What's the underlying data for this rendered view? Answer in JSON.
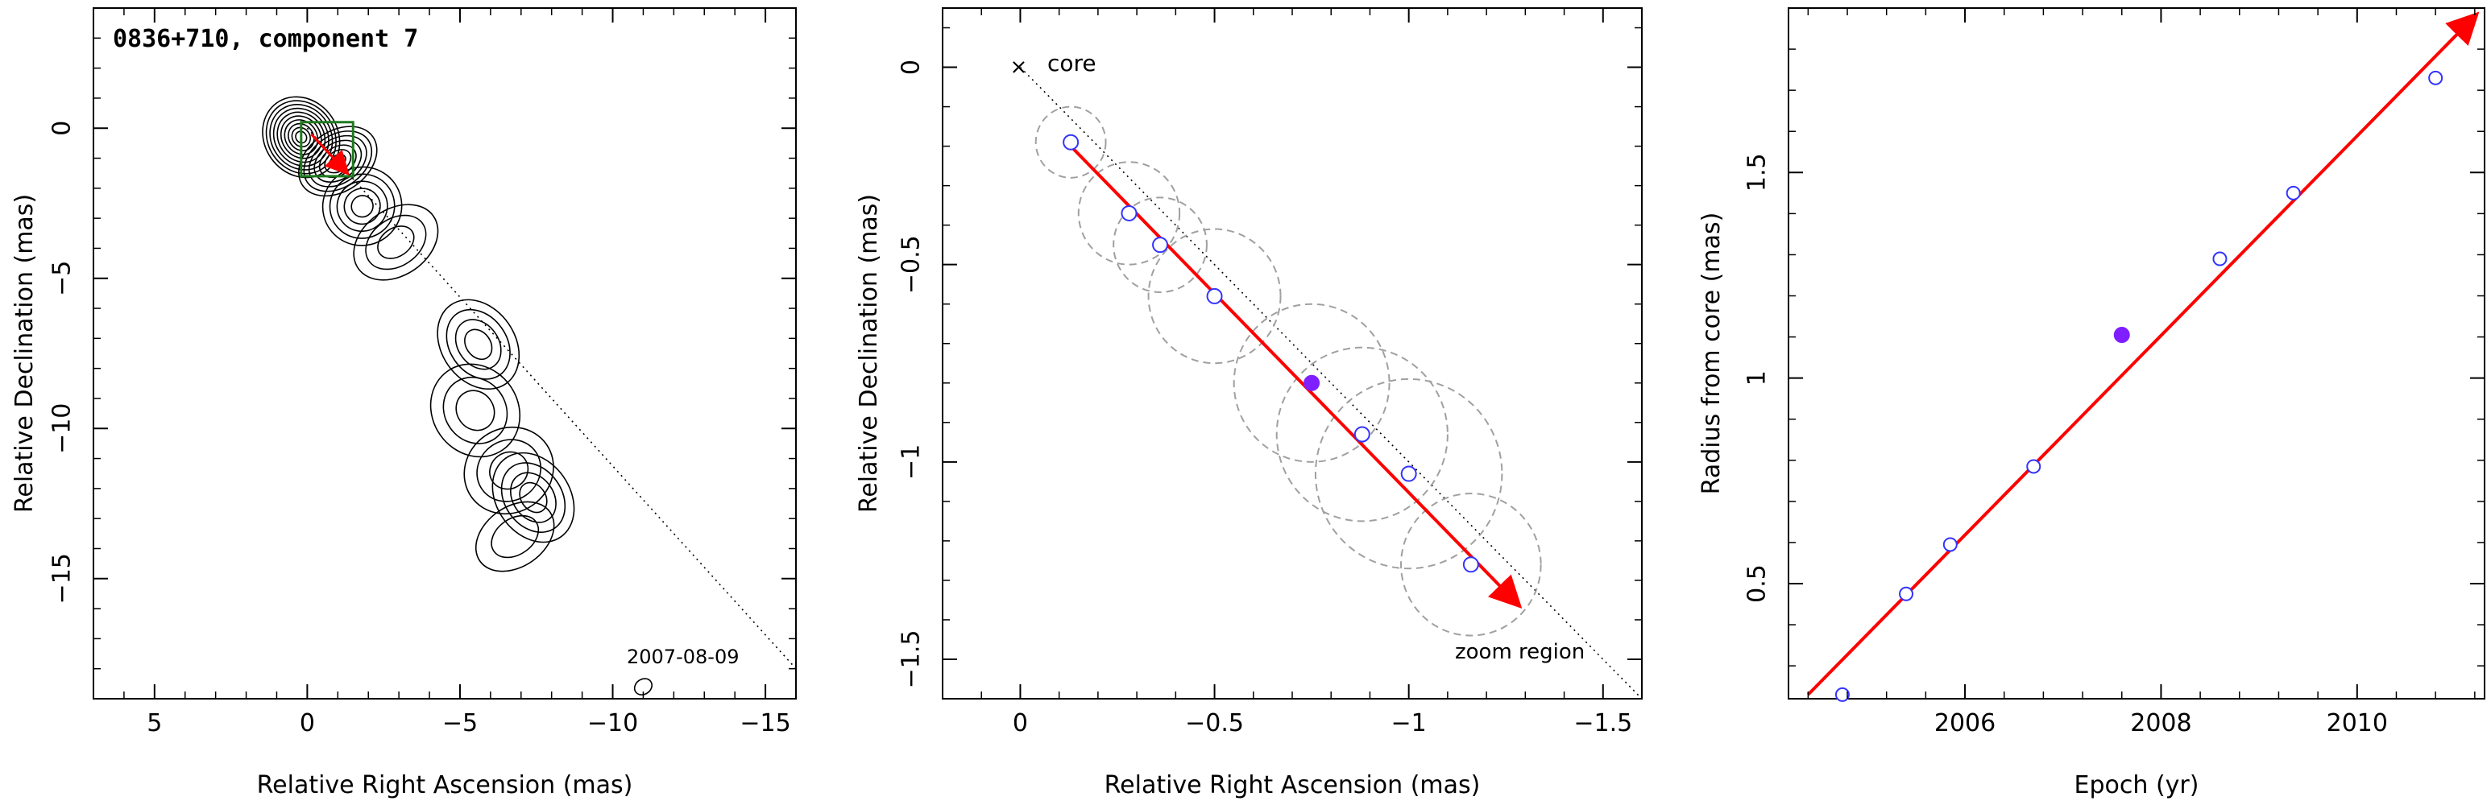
{
  "chart_data": [
    {
      "type": "contour",
      "title": "0836+710, component 7",
      "date_label": "2007-08-09",
      "xlabel": "Relative Right Ascension (mas)",
      "ylabel": "Relative Declination (mas)",
      "xlim": [
        7,
        -16
      ],
      "ylim": [
        -19,
        4
      ],
      "xticks": [
        5,
        0,
        -5,
        -10,
        -15
      ],
      "yticks": [
        0,
        -5,
        -10,
        -15
      ],
      "xtick_labels": [
        "5",
        "0",
        "−5",
        "−10",
        "−15"
      ],
      "ytick_labels": [
        "0",
        "−5",
        "−10",
        "−15"
      ],
      "jet_direction_line": [
        [
          0,
          0
        ],
        [
          -16,
          -18
        ]
      ],
      "zoom_box": {
        "x": [
          -1.5,
          0.2
        ],
        "y": [
          -1.6,
          0.2
        ]
      },
      "component_arrow": {
        "from": [
          -0.13,
          -0.2
        ],
        "to": [
          -1.28,
          -1.46
        ]
      },
      "blobs": [
        {
          "x": 0.2,
          "y": -0.3,
          "rx": 1.2,
          "ry": 1.4,
          "levels": 10
        },
        {
          "x": -1.0,
          "y": -1.1,
          "rx": 1.4,
          "ry": 1.0,
          "levels": 7
        },
        {
          "x": -1.8,
          "y": -2.6,
          "rx": 1.3,
          "ry": 1.3,
          "levels": 5
        },
        {
          "x": -2.9,
          "y": -3.8,
          "rx": 1.5,
          "ry": 1.1,
          "levels": 3
        },
        {
          "x": -5.6,
          "y": -7.2,
          "rx": 1.2,
          "ry": 1.6,
          "levels": 4
        },
        {
          "x": -5.5,
          "y": -9.4,
          "rx": 1.4,
          "ry": 1.6,
          "levels": 3
        },
        {
          "x": -6.6,
          "y": -11.4,
          "rx": 1.5,
          "ry": 1.4,
          "levels": 3
        },
        {
          "x": -7.4,
          "y": -12.3,
          "rx": 1.2,
          "ry": 1.6,
          "levels": 4
        },
        {
          "x": -6.8,
          "y": -13.6,
          "rx": 1.4,
          "ry": 1.0,
          "levels": 2
        },
        {
          "x": -11.0,
          "y": -18.6,
          "rx": 0.3,
          "ry": 0.25,
          "levels": 1
        }
      ]
    },
    {
      "type": "scatter",
      "xlabel": "Relative Right Ascension (mas)",
      "ylabel": "Relative Declination (mas)",
      "xlim": [
        0.2,
        -1.6
      ],
      "ylim": [
        -1.6,
        0.15
      ],
      "xticks": [
        0,
        -0.5,
        -1,
        -1.5
      ],
      "yticks": [
        0,
        -0.5,
        -1,
        -1.5
      ],
      "xtick_labels": [
        "0",
        "−0.5",
        "−1",
        "−1.5"
      ],
      "ytick_labels": [
        "0",
        "−0.5",
        "−1",
        "−1.5"
      ],
      "core_label": "core",
      "zoom_label": "zoom region",
      "direction_line": [
        [
          0,
          0
        ],
        [
          -1.6,
          -1.6
        ]
      ],
      "arrow": {
        "from": [
          -0.13,
          -0.2
        ],
        "to": [
          -1.28,
          -1.36
        ]
      },
      "points": [
        {
          "x": -0.13,
          "y": -0.19,
          "r": 0.09,
          "filled": false
        },
        {
          "x": -0.28,
          "y": -0.37,
          "r": 0.13,
          "filled": false
        },
        {
          "x": -0.36,
          "y": -0.45,
          "r": 0.12,
          "filled": false
        },
        {
          "x": -0.5,
          "y": -0.58,
          "r": 0.17,
          "filled": false
        },
        {
          "x": -0.75,
          "y": -0.8,
          "r": 0.2,
          "filled": true
        },
        {
          "x": -0.88,
          "y": -0.93,
          "r": 0.22,
          "filled": false
        },
        {
          "x": -1.0,
          "y": -1.03,
          "r": 0.24,
          "filled": false
        },
        {
          "x": -1.16,
          "y": -1.26,
          "r": 0.18,
          "filled": false
        }
      ]
    },
    {
      "type": "scatter",
      "xlabel": "Epoch (yr)",
      "ylabel": "Radius from core (mas)",
      "xlim": [
        2004.2,
        2011.3
      ],
      "ylim": [
        0.22,
        1.9
      ],
      "xticks": [
        2006,
        2008,
        2010
      ],
      "yticks": [
        0.5,
        1,
        1.5
      ],
      "xtick_labels": [
        "2006",
        "2008",
        "2010"
      ],
      "ytick_labels": [
        "0.5",
        "1",
        "1.5"
      ],
      "fit_line": {
        "from": [
          2004.4,
          0.23
        ],
        "to": [
          2011.2,
          1.88
        ]
      },
      "points": [
        {
          "x": 2004.75,
          "y": 0.23,
          "filled": false
        },
        {
          "x": 2005.4,
          "y": 0.475,
          "filled": false
        },
        {
          "x": 2005.85,
          "y": 0.595,
          "filled": false
        },
        {
          "x": 2006.7,
          "y": 0.785,
          "filled": false
        },
        {
          "x": 2007.6,
          "y": 1.105,
          "filled": true
        },
        {
          "x": 2008.6,
          "y": 1.29,
          "filled": false
        },
        {
          "x": 2009.35,
          "y": 1.45,
          "filled": false
        },
        {
          "x": 2010.8,
          "y": 1.73,
          "filled": false
        }
      ]
    }
  ],
  "colors": {
    "arrow": "#ff0000",
    "points": "#3333ff",
    "filled_point": "#7f1fff",
    "zoom_box": "#1f7a1f",
    "circles": "#a0a0a0",
    "axes": "#000000"
  }
}
